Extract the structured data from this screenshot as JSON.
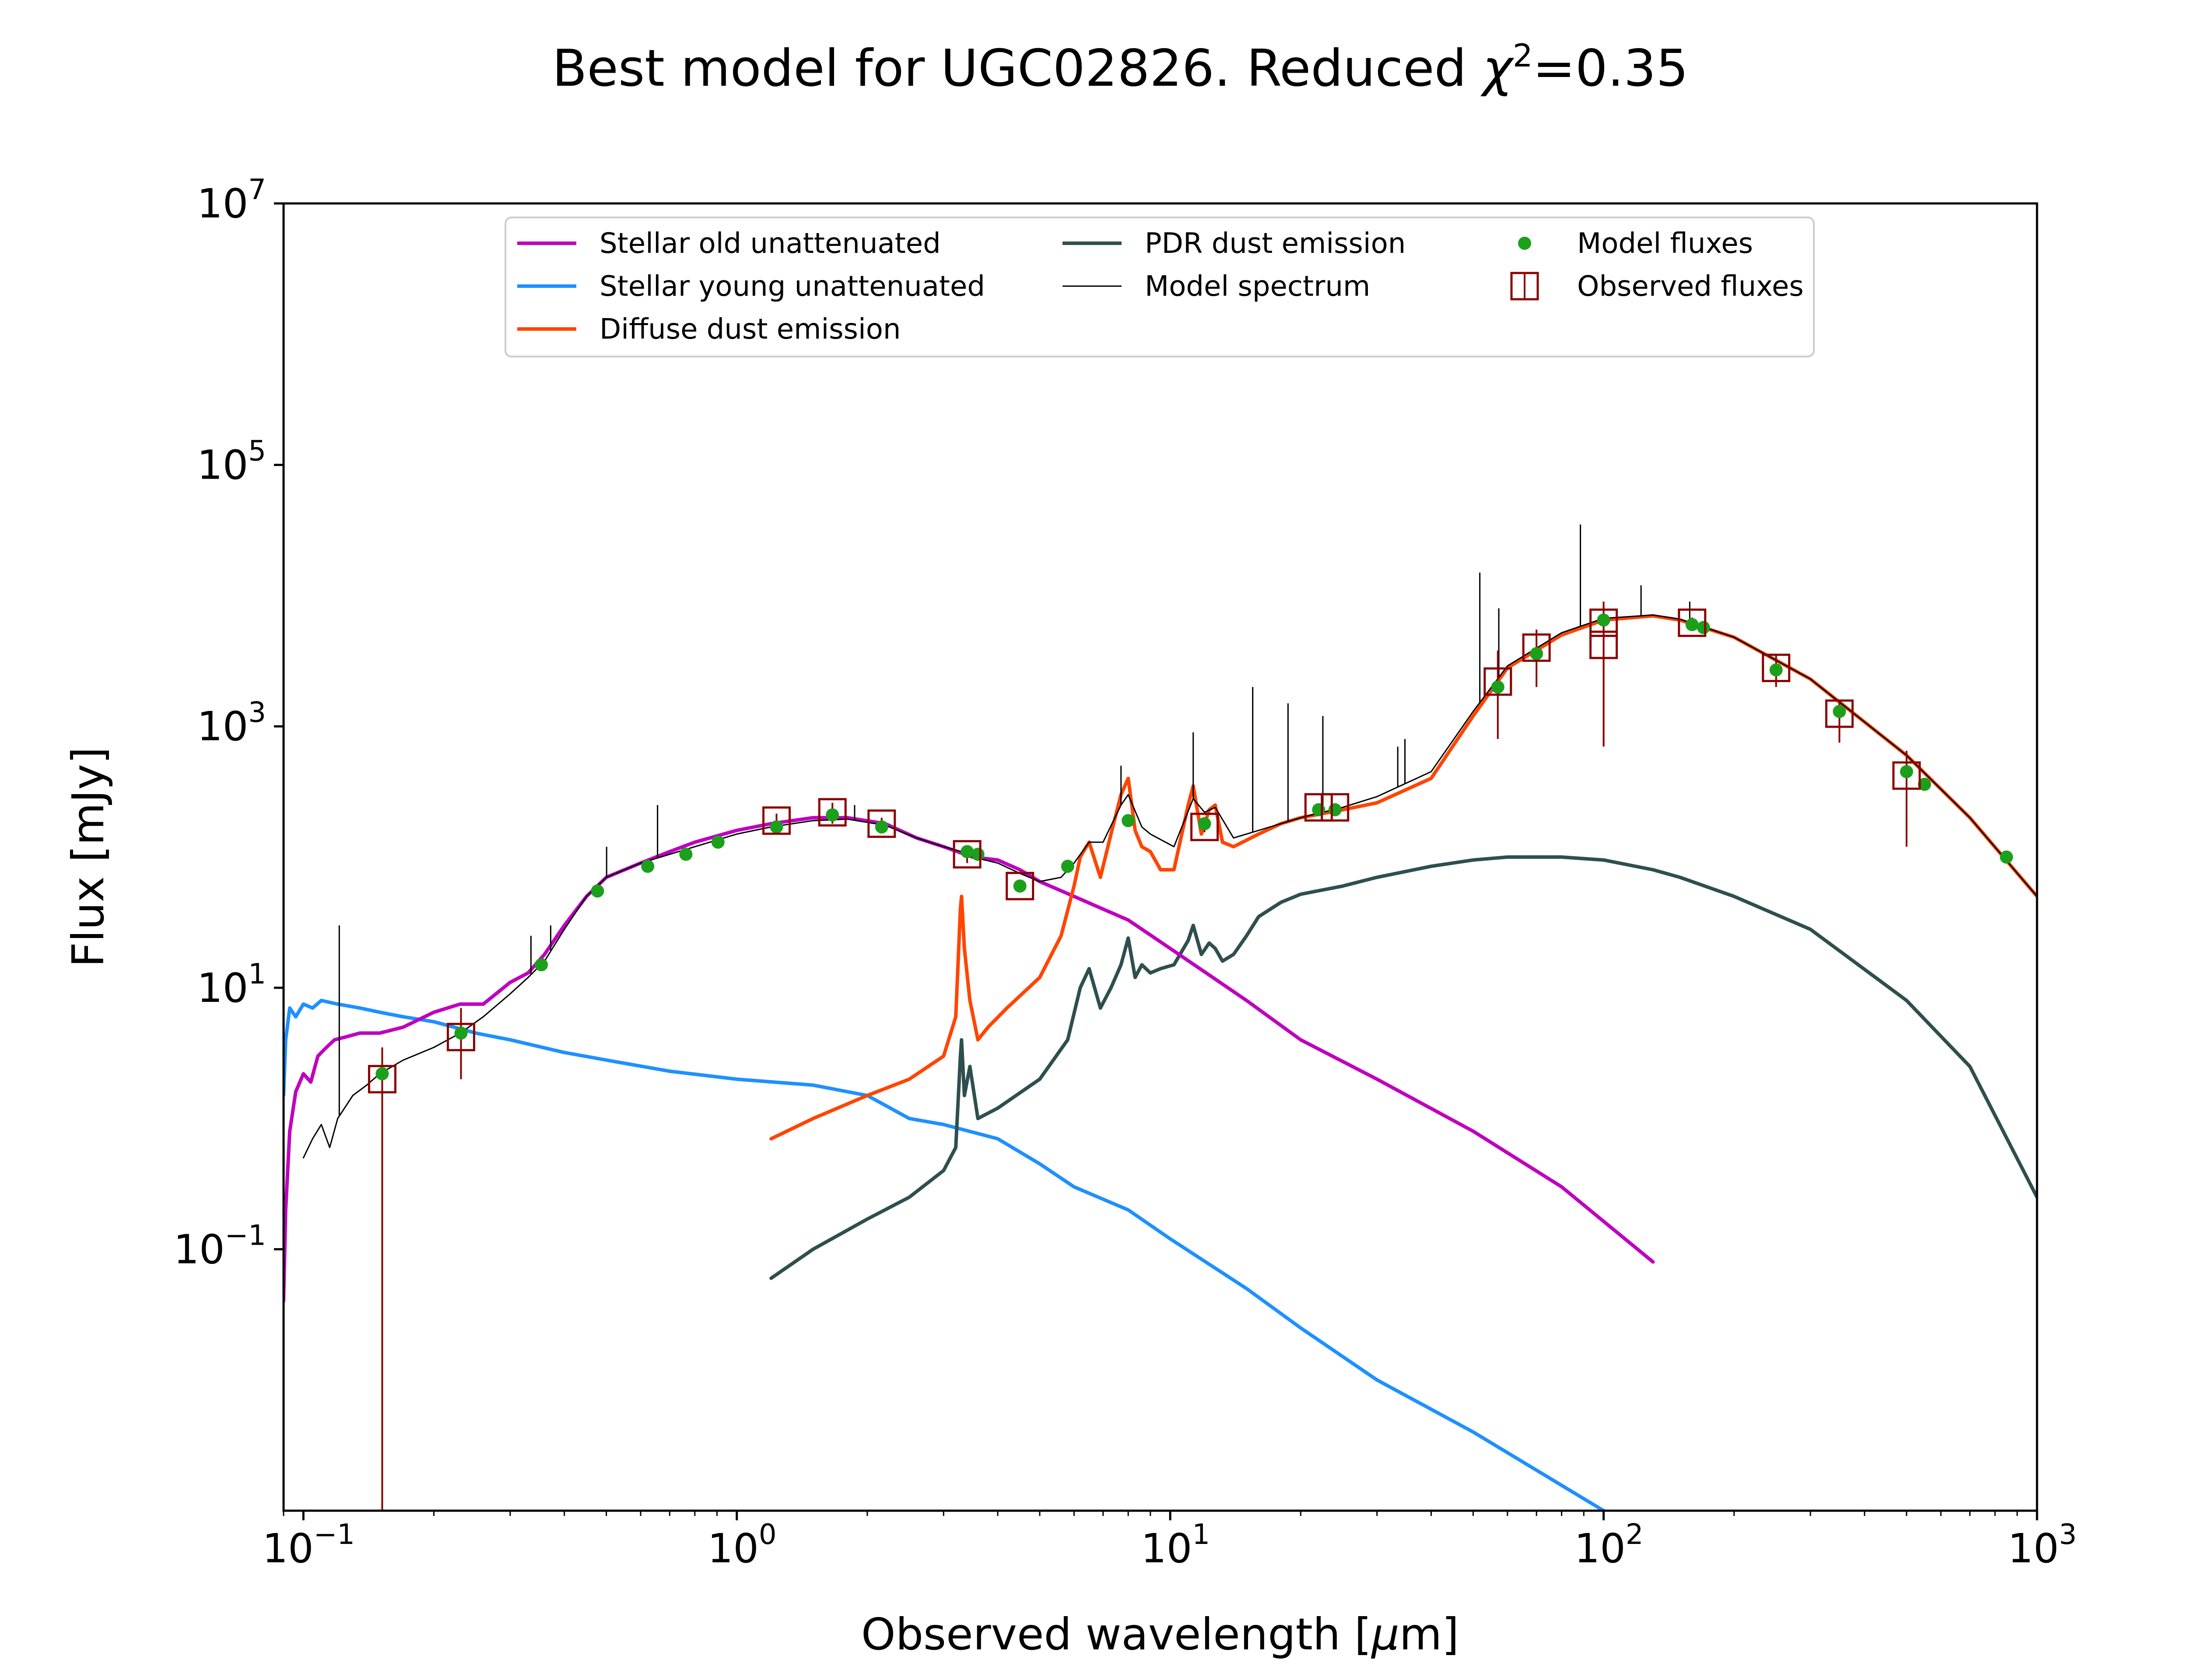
{
  "chart_data": {
    "type": "line",
    "title": "Best model for UGC02826. Reduced χ²=0.35",
    "title_parts": {
      "main": "Best model for UGC02826. Reduced ",
      "chi": "χ",
      "sq": "2",
      "value": "=0.35"
    },
    "xlabel": "Observed wavelength [μm]",
    "xlabel_parts": {
      "pre": "Observed wavelength [",
      "mu": "μ",
      "post": "m]"
    },
    "ylabel": "Flux [mJy]",
    "xscale": "log",
    "yscale": "log",
    "xlim": [
      0.09,
      1000
    ],
    "ylim": [
      0.001,
      10000000
    ],
    "x_ticks": [
      {
        "value": 0.1,
        "base": "10",
        "exp": "−1"
      },
      {
        "value": 1,
        "base": "10",
        "exp": "0"
      },
      {
        "value": 10,
        "base": "10",
        "exp": "1"
      },
      {
        "value": 100,
        "base": "10",
        "exp": "2"
      },
      {
        "value": 1000,
        "base": "10",
        "exp": "3"
      }
    ],
    "y_ticks": [
      {
        "value": 0.1,
        "base": "10",
        "exp": "−1"
      },
      {
        "value": 10,
        "base": "10",
        "exp": "1"
      },
      {
        "value": 1000,
        "base": "10",
        "exp": "3"
      },
      {
        "value": 100000,
        "base": "10",
        "exp": "5"
      },
      {
        "value": 10000000,
        "base": "10",
        "exp": "7"
      }
    ],
    "grid": false,
    "legend_position": "top-center",
    "legend": [
      {
        "label": "Stellar old unattenuated",
        "series": "stellar_old",
        "kind": "line",
        "color": "#bf00bf"
      },
      {
        "label": "Stellar young unattenuated",
        "series": "stellar_young",
        "kind": "line",
        "color": "#1e90ff"
      },
      {
        "label": "Diffuse dust emission",
        "series": "diffuse_dust",
        "kind": "line",
        "color": "#ff4500"
      },
      {
        "label": "PDR dust emission",
        "series": "pdr_dust",
        "kind": "line",
        "color": "#2f4f4f"
      },
      {
        "label": "Model spectrum",
        "series": "model_spectrum",
        "kind": "thin-line",
        "color": "#000000"
      },
      {
        "label": "Model fluxes",
        "series": "model_fluxes",
        "kind": "dot",
        "color": "#1ca01c"
      },
      {
        "label": "Observed fluxes",
        "series": "observed_fluxes",
        "kind": "square",
        "color": "#8b0000"
      }
    ],
    "series": {
      "stellar_old": {
        "color": "#bf00bf",
        "width": 8,
        "x": [
          0.09,
          0.091,
          0.093,
          0.096,
          0.1,
          0.104,
          0.108,
          0.113,
          0.118,
          0.125,
          0.135,
          0.15,
          0.17,
          0.2,
          0.23,
          0.26,
          0.3,
          0.33,
          0.36,
          0.4,
          0.45,
          0.5,
          0.6,
          0.7,
          0.8,
          1.0,
          1.2,
          1.5,
          1.8,
          2.2,
          2.6,
          3.0,
          3.5,
          4.0,
          4.5,
          5.0,
          6,
          7,
          8,
          10,
          15,
          20,
          30,
          50,
          80,
          130
        ],
        "y": [
          0.04,
          0.2,
          0.8,
          1.6,
          2.2,
          1.9,
          3.0,
          3.5,
          4.0,
          4.2,
          4.5,
          4.5,
          5.0,
          6.5,
          7.5,
          7.5,
          11,
          13,
          18,
          30,
          50,
          70,
          90,
          110,
          130,
          160,
          180,
          200,
          200,
          180,
          140,
          120,
          100,
          95,
          80,
          65,
          50,
          40,
          33,
          20,
          8,
          4,
          2,
          0.8,
          0.3,
          0.08
        ]
      },
      "stellar_young": {
        "color": "#1e90ff",
        "width": 8,
        "x": [
          0.09,
          0.091,
          0.093,
          0.096,
          0.1,
          0.105,
          0.11,
          0.12,
          0.135,
          0.15,
          0.17,
          0.2,
          0.25,
          0.3,
          0.4,
          0.5,
          0.7,
          1.0,
          1.5,
          2.0,
          2.5,
          3.0,
          4.0,
          5.0,
          6,
          8,
          10,
          15,
          20,
          30,
          50,
          100
        ],
        "y": [
          1.5,
          4.0,
          7.0,
          6.0,
          7.5,
          7.0,
          8.0,
          7.5,
          7.0,
          6.5,
          6.0,
          5.5,
          4.5,
          4.0,
          3.2,
          2.8,
          2.3,
          2.0,
          1.8,
          1.5,
          1.0,
          0.9,
          0.7,
          0.45,
          0.3,
          0.2,
          0.12,
          0.05,
          0.025,
          0.01,
          0.004,
          0.001
        ]
      },
      "diffuse_dust": {
        "color": "#ff4500",
        "width": 8,
        "x": [
          1.2,
          1.5,
          2.0,
          2.5,
          3.0,
          3.2,
          3.28,
          3.3,
          3.35,
          3.45,
          3.6,
          3.8,
          4.2,
          5.0,
          5.6,
          6.0,
          6.2,
          6.5,
          6.9,
          7.3,
          7.7,
          8.0,
          8.3,
          8.6,
          9.0,
          9.5,
          10.2,
          11.0,
          11.3,
          11.8,
          12.3,
          12.7,
          13.2,
          14,
          16,
          18,
          20,
          25,
          30,
          40,
          50,
          60,
          80,
          100,
          130,
          150,
          200,
          300,
          500,
          700,
          1000
        ],
        "y": [
          0.7,
          1.0,
          1.5,
          2.0,
          3.0,
          6.0,
          40,
          50,
          20,
          8.0,
          4.0,
          5.0,
          7.0,
          12,
          25,
          60,
          100,
          130,
          70,
          150,
          300,
          400,
          160,
          120,
          110,
          80,
          80,
          250,
          350,
          150,
          230,
          250,
          130,
          120,
          150,
          180,
          200,
          230,
          260,
          400,
          1200,
          2800,
          5000,
          6500,
          7000,
          6500,
          4800,
          2300,
          600,
          200,
          50
        ]
      },
      "pdr_dust": {
        "color": "#2f4f4f",
        "width": 8,
        "x": [
          1.2,
          1.5,
          2.0,
          2.5,
          3.0,
          3.2,
          3.28,
          3.3,
          3.35,
          3.45,
          3.6,
          4.0,
          5.0,
          5.8,
          6.2,
          6.5,
          6.9,
          7.3,
          7.7,
          8.0,
          8.3,
          8.6,
          9.0,
          9.5,
          10.2,
          11.0,
          11.3,
          11.8,
          12.3,
          12.7,
          13.2,
          14,
          15,
          16,
          18,
          20,
          25,
          30,
          40,
          50,
          60,
          80,
          100,
          130,
          150,
          200,
          300,
          500,
          700,
          1000
        ],
        "y": [
          0.06,
          0.1,
          0.17,
          0.25,
          0.4,
          0.6,
          3,
          4,
          1.5,
          2.5,
          1.0,
          1.2,
          2.0,
          4.0,
          10,
          14,
          7,
          10,
          15,
          24,
          12,
          15,
          13,
          14,
          15,
          23,
          30,
          18,
          22,
          20,
          16,
          18,
          25,
          35,
          45,
          52,
          60,
          70,
          85,
          95,
          100,
          100,
          95,
          80,
          70,
          50,
          28,
          8,
          2.5,
          0.25
        ]
      },
      "model_spectrum": {
        "color": "#000000",
        "width": 3,
        "x": [
          0.1,
          0.105,
          0.11,
          0.115,
          0.12,
          0.13,
          0.14,
          0.15,
          0.17,
          0.2,
          0.23,
          0.26,
          0.3,
          0.33,
          0.36,
          0.4,
          0.45,
          0.5,
          0.6,
          0.7,
          0.8,
          1.0,
          1.2,
          1.5,
          1.8,
          2.2,
          2.6,
          3.0,
          3.3,
          3.5,
          4.0,
          4.5,
          5.0,
          5.6,
          6.0,
          6.5,
          7.0,
          7.7,
          8.0,
          8.6,
          9.0,
          10.2,
          11.3,
          12.0,
          12.7,
          14,
          16,
          20,
          25,
          30,
          40,
          50,
          60,
          80,
          100,
          130,
          150,
          200,
          300,
          500,
          700,
          1000
        ],
        "y": [
          0.5,
          0.7,
          0.9,
          0.6,
          1.0,
          1.5,
          1.8,
          2.2,
          2.8,
          3.5,
          4.5,
          6.0,
          9.0,
          12,
          16,
          28,
          50,
          70,
          90,
          105,
          120,
          150,
          170,
          190,
          195,
          175,
          140,
          120,
          110,
          100,
          90,
          75,
          65,
          70,
          90,
          130,
          130,
          250,
          300,
          170,
          150,
          120,
          280,
          220,
          240,
          140,
          160,
          200,
          240,
          290,
          450,
          1300,
          2900,
          5200,
          6700,
          7100,
          6600,
          4800,
          2300,
          600,
          200,
          50
        ]
      },
      "spectrum_spikes": {
        "color": "#000000",
        "width": 3,
        "x": [
          0.121,
          0.335,
          0.372,
          0.5007,
          0.6563,
          1.87,
          7.7,
          11.3,
          15.5,
          18.7,
          22.5,
          33.5,
          34.8,
          51.8,
          57.3,
          88.4,
          122,
          158
        ],
        "y_top": [
          30,
          25,
          30,
          120,
          250,
          250,
          500,
          900,
          2000,
          1500,
          1200,
          700,
          800,
          15000,
          8000,
          35000,
          12000,
          9000
        ]
      }
    },
    "model_fluxes": {
      "x": [
        0.152,
        0.231,
        0.354,
        0.477,
        0.623,
        0.763,
        0.905,
        1.235,
        1.662,
        2.159,
        3.4,
        3.6,
        4.5,
        5.8,
        8.0,
        12,
        22,
        24,
        57,
        70,
        100,
        160,
        170,
        250,
        350,
        500,
        550,
        850
      ],
      "y": [
        2.2,
        4.5,
        15,
        55,
        85,
        105,
        130,
        170,
        210,
        170,
        110,
        105,
        60,
        85,
        190,
        180,
        230,
        230,
        2000,
        3600,
        6500,
        6000,
        5700,
        2700,
        1300,
        450,
        360,
        100
      ]
    },
    "observed_fluxes": {
      "x": [
        0.152,
        0.231,
        1.235,
        1.662,
        2.159,
        3.4,
        4.5,
        12,
        22,
        24,
        57,
        70,
        100,
        100,
        160,
        250,
        350,
        500
      ],
      "y": [
        2.0,
        4.2,
        190,
        220,
        180,
        105,
        60,
        170,
        240,
        240,
        2200,
        4000,
        6200,
        4200,
        6200,
        2800,
        1250,
        420
      ],
      "err_lo": [
        0.001,
        2.0,
        160,
        180,
        160,
        90,
        55,
        155,
        225,
        225,
        800,
        2000,
        700,
        700,
        5600,
        2000,
        750,
        120
      ],
      "err_hi": [
        3.5,
        7.0,
        215,
        260,
        200,
        120,
        66,
        185,
        255,
        255,
        3800,
        5500,
        9000,
        9000,
        6800,
        3500,
        1600,
        650
      ]
    }
  }
}
